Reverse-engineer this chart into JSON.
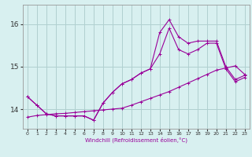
{
  "xlabel": "Windchill (Refroidissement éolien,°C)",
  "bg_color": "#d8f0f0",
  "grid_color": "#b0d0d0",
  "line_color": "#990099",
  "x_ticks": [
    0,
    1,
    2,
    3,
    4,
    5,
    6,
    7,
    8,
    9,
    10,
    11,
    12,
    13,
    14,
    15,
    16,
    17,
    18,
    19,
    20,
    21,
    22,
    23
  ],
  "y_ticks": [
    14,
    15,
    16
  ],
  "xlim": [
    -0.5,
    23.5
  ],
  "ylim": [
    13.55,
    16.45
  ],
  "series": [
    [
      14.3,
      14.1,
      13.9,
      13.85,
      13.85,
      13.85,
      13.85,
      13.75,
      14.15,
      14.4,
      14.6,
      14.7,
      14.85,
      14.95,
      15.8,
      16.1,
      15.7,
      15.55,
      15.6,
      15.6,
      15.6,
      15.0,
      14.7,
      14.8
    ],
    [
      14.3,
      14.1,
      13.9,
      13.85,
      13.85,
      13.85,
      13.85,
      13.75,
      14.15,
      14.4,
      14.6,
      14.7,
      14.85,
      14.95,
      15.3,
      15.9,
      15.4,
      15.3,
      15.4,
      15.55,
      15.55,
      14.95,
      14.65,
      14.75
    ],
    [
      13.82,
      13.86,
      13.88,
      13.9,
      13.91,
      13.93,
      13.95,
      13.97,
      13.99,
      14.01,
      14.03,
      14.1,
      14.18,
      14.26,
      14.34,
      14.42,
      14.52,
      14.62,
      14.72,
      14.82,
      14.92,
      14.97,
      15.02,
      14.82
    ]
  ]
}
